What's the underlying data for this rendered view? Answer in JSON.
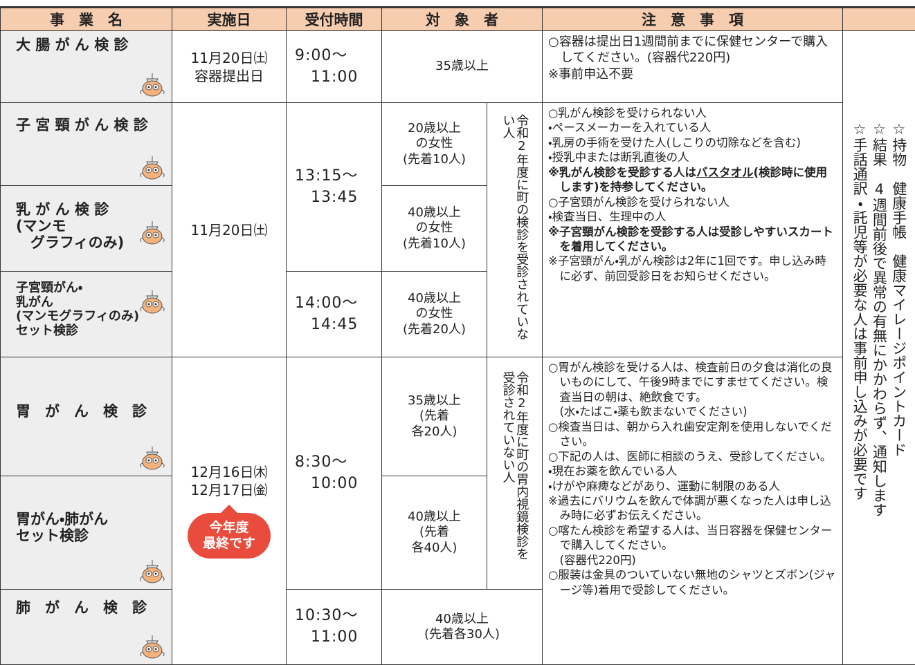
{
  "header": [
    "事　業　名",
    "実施日",
    "受付時間",
    "対　象　者",
    "注　意　事　項"
  ],
  "programs": [
    "大 腸 が ん 検 診",
    "子 宮 頸 が ん 検 診",
    "乳 が ん 検 診\n(マンモ\n　グラフィのみ)",
    "子宮頸がん・\n乳がん\n(マンモグラフィのみ)\nセット検診",
    "胃　が　ん　検　診",
    "胃がん・肺がん\nセット検診",
    "肺　が　ん　検　診"
  ],
  "dates": [
    "11月20日㈯\n容器提出日",
    "11月20日㈯",
    "12月16日㈭\n12月17日㈮"
  ],
  "badge": "今年度\n最終です",
  "times": [
    "9:00〜\n　11:00",
    "13:15〜\n　13:45",
    "14:00〜\n　14:45",
    "8:30〜\n　10:00",
    "10:30〜\n　11:00"
  ],
  "targets": [
    "35歳以上",
    "20歳以上\nの女性\n(先着10人)",
    "40歳以上\nの女性\n(先着10人)",
    "40歳以上\nの女性\n(先着20人)",
    "35歳以上\n(先着\n各20人)",
    "40歳以上\n(先着\n各40人)",
    "40歳以上\n(先着各30人)"
  ],
  "target_notes": [
    "令和2年度に町の検診を受診されていない人",
    "令和2年度に町の胃内視鏡検診を受診されていない人"
  ],
  "notes": [
    [
      "○容器は提出日1週間前までに保健センターで購入してください。(容器代220円)",
      "※事前申込不要"
    ],
    [
      "○乳がん検診を受けられない人",
      "・ペースメーカーを入れている人",
      "・乳房の手術を受けた人(しこりの切除などを含む)",
      "・授乳中または断乳直後の人",
      [
        "※乳がん検診を受診する人は",
        "バスタオル",
        "(検診時に使用します)を持参してください。"
      ],
      "○子宮頸がん検診を受けられない人",
      "・検査当日、生理中の人",
      "※子宮頸がん検診を受診する人は受診しやすいスカートを着用してください。",
      "※子宮頸がん・乳がん検診は2年に1回です。申し込み時に必ず、前回受診日をお知らせください。"
    ],
    [
      "○胃がん検診を受ける人は、検査前日の夕食は消化の良いものにして、午後9時までにすませてください。検査当日の朝は、絶飲食です。",
      "(水・たばこ・薬も飲まないでください)",
      "○検査当日は、朝から入れ歯安定剤を使用しないでください。",
      "○下記の人は、医師に相談のうえ、受診してください。",
      "・現在お薬を飲んでいる人",
      "・けがや麻痺などがあり、運動に制限のある人",
      "※過去にバリウムを飲んで体調が悪くなった人は申し込み時に必ずお伝えください。",
      "○喀たん検診を希望する人は、当日容器を保健センターで購入してください。",
      "(容器代220円)",
      "○服装は金具のついていない無地のシャツとズボン(ジャージ等)着用で受診してください。"
    ]
  ],
  "info": [
    "☆持物　健康手帳　健康マイレージポイントカード",
    "☆結果　4週間前後で異常の有無にかかわらず、通知します",
    "☆手話通訳・託児等が必要な人は事前申し込みが必要です"
  ]
}
